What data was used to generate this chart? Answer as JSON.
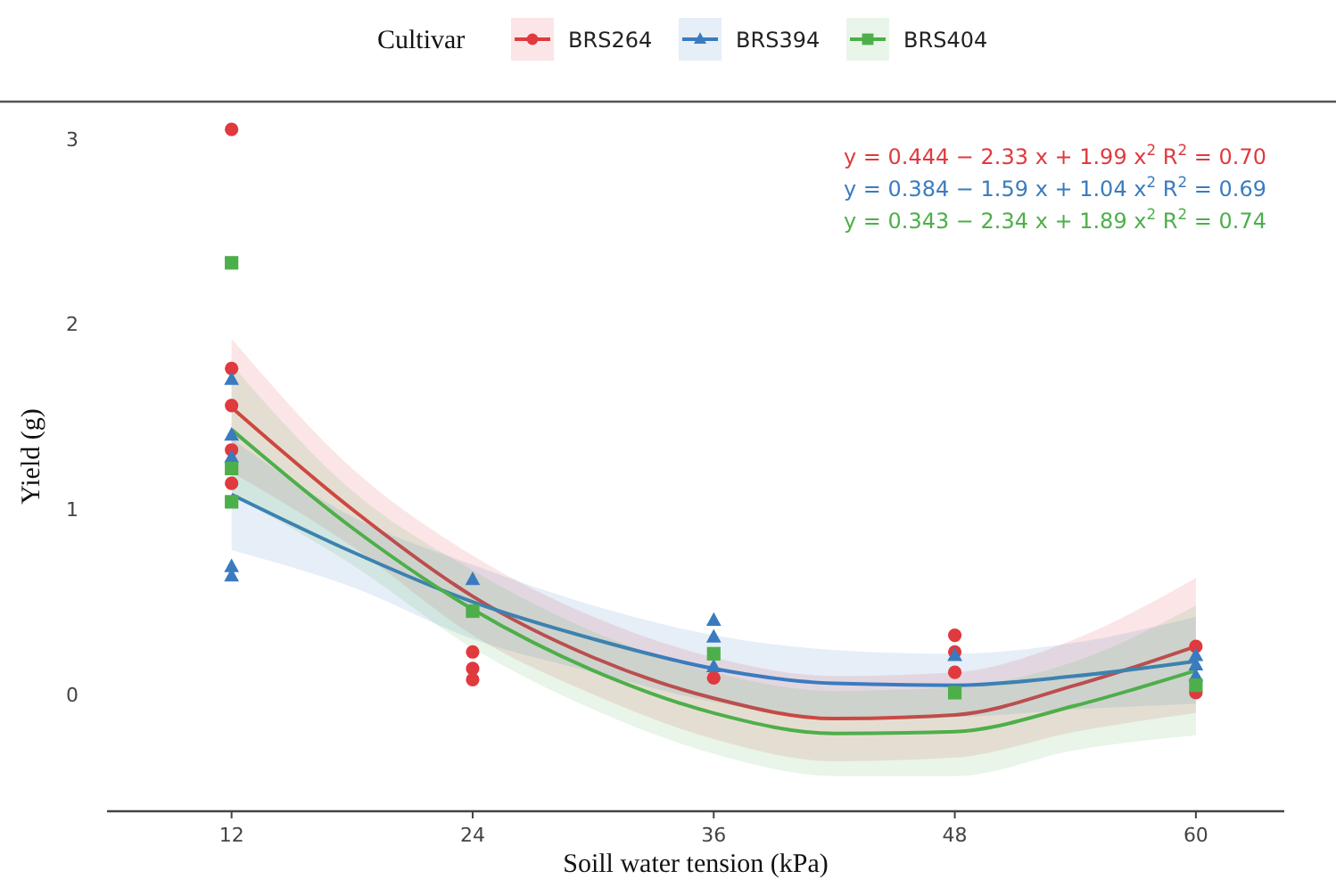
{
  "chart_data": {
    "type": "scatter",
    "xlabel": "Soill water tension (kPa)",
    "ylabel": "Yield (g)",
    "legend_title": "Cultivar",
    "legend": "top",
    "xlim": [
      5.8,
      64.4
    ],
    "xticks": [
      12,
      24,
      36,
      48,
      60
    ],
    "ylim": [
      -0.63,
      3.2
    ],
    "yticks": [
      0,
      1,
      2,
      3
    ],
    "grid": false,
    "series": [
      {
        "name": "BRS264",
        "color": "#e0393e",
        "marker": "circle",
        "x": [
          12,
          12,
          12,
          12,
          12,
          24,
          24,
          24,
          36,
          48,
          48,
          48,
          60,
          60
        ],
        "values": [
          3.05,
          1.76,
          1.56,
          1.32,
          1.14,
          0.23,
          0.14,
          0.08,
          0.09,
          0.32,
          0.23,
          0.12,
          0.26,
          0.01
        ]
      },
      {
        "name": "BRS394",
        "color": "#3a7bbf",
        "marker": "triangle",
        "x": [
          12,
          12,
          12,
          12,
          12,
          24,
          36,
          36,
          36,
          48,
          60,
          60,
          60
        ],
        "values": [
          1.7,
          1.4,
          1.28,
          0.69,
          0.64,
          0.62,
          0.4,
          0.31,
          0.15,
          0.21,
          0.21,
          0.16,
          0.1
        ]
      },
      {
        "name": "BRS404",
        "color": "#4daf4a",
        "marker": "square",
        "x": [
          12,
          12,
          12,
          24,
          36,
          48,
          60
        ],
        "values": [
          2.33,
          1.22,
          1.04,
          0.45,
          0.22,
          0.01,
          0.05
        ]
      },
      {
        "type": "line",
        "color": "#e0393e",
        "x": [
          12,
          18,
          24,
          30,
          36,
          42,
          48,
          54,
          60
        ],
        "values": [
          1.55,
          1.0,
          0.53,
          0.2,
          -0.02,
          -0.13,
          -0.11,
          0.05,
          0.26
        ],
        "lower": [
          1.2,
          0.8,
          0.32,
          0.0,
          -0.24,
          -0.36,
          -0.34,
          -0.2,
          -0.1
        ],
        "upper": [
          1.92,
          1.22,
          0.75,
          0.42,
          0.2,
          0.1,
          0.12,
          0.3,
          0.63
        ]
      },
      {
        "type": "line",
        "color": "#3a7bbf",
        "x": [
          12,
          18,
          24,
          30,
          36,
          42,
          48,
          54,
          60
        ],
        "values": [
          1.08,
          0.77,
          0.5,
          0.3,
          0.14,
          0.06,
          0.05,
          0.1,
          0.18
        ],
        "lower": [
          0.78,
          0.58,
          0.3,
          0.12,
          -0.04,
          -0.12,
          -0.12,
          -0.08,
          -0.05
        ],
        "upper": [
          1.38,
          0.96,
          0.7,
          0.48,
          0.32,
          0.24,
          0.22,
          0.28,
          0.42
        ]
      },
      {
        "type": "line",
        "color": "#4daf4a",
        "x": [
          12,
          18,
          24,
          30,
          36,
          42,
          48,
          54,
          60
        ],
        "values": [
          1.43,
          0.9,
          0.46,
          0.13,
          -0.1,
          -0.21,
          -0.2,
          -0.06,
          0.13
        ],
        "lower": [
          1.08,
          0.7,
          0.25,
          -0.08,
          -0.32,
          -0.44,
          -0.44,
          -0.3,
          -0.22
        ],
        "upper": [
          1.78,
          1.1,
          0.67,
          0.34,
          0.12,
          0.02,
          0.04,
          0.18,
          0.48
        ]
      }
    ],
    "annotations": [
      "y = 0.444 − 2.33 x + 1.99 x$^{2}$  R$^{2}$ = 0.70",
      "y = 0.384 − 1.59 x + 1.04 x$^{2}$  R$^{2}$ = 0.69",
      "y = 0.343 − 2.34 x + 1.89 x$^{2}$  R$^{2}$ = 0.74"
    ]
  }
}
